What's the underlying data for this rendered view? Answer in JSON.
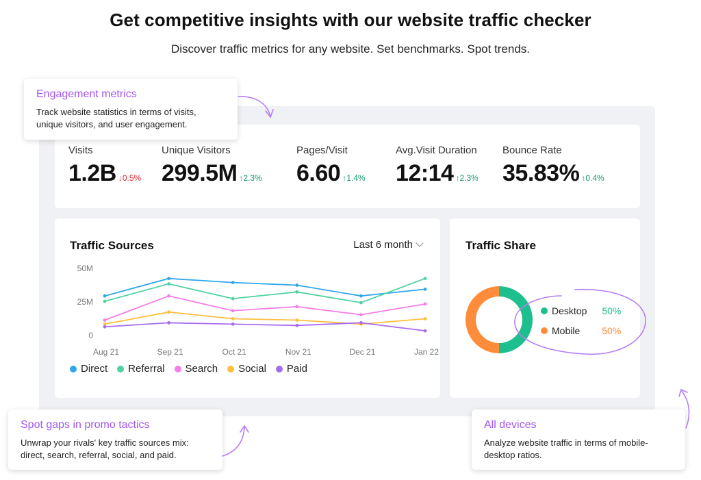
{
  "header": {
    "title": "Get competitive insights with our website traffic checker",
    "subtitle": "Discover traffic metrics for any website. Set benchmarks. Spot trends."
  },
  "metrics": [
    {
      "label": "Visits",
      "value": "1.2B",
      "change": "↓0.5%",
      "direction": "down"
    },
    {
      "label": "Unique Visitors",
      "value": "299.5M",
      "change": "↑2.3%",
      "direction": "up"
    },
    {
      "label": "Pages/Visit",
      "value": "6.60",
      "change": "↑1.4%",
      "direction": "up"
    },
    {
      "label": "Avg.Visit Duration",
      "value": "12:14",
      "change": "↑2.3%",
      "direction": "up"
    },
    {
      "label": "Bounce Rate",
      "value": "35.83%",
      "change": "↑0.4%",
      "direction": "up"
    }
  ],
  "traffic_sources": {
    "title": "Traffic Sources",
    "period": "Last 6 month"
  },
  "traffic_share": {
    "title": "Traffic Share",
    "items": [
      {
        "label": "Desktop",
        "value": "50%",
        "color": "#1dbf8f"
      },
      {
        "label": "Mobile",
        "value": "50%",
        "color": "#ff8c3b"
      }
    ]
  },
  "callouts": {
    "engagement": {
      "title": "Engagement metrics",
      "text": "Track website statistics in terms of visits, unique visitors, and user engagement."
    },
    "promo": {
      "title": "Spot gaps in promo tactics",
      "text": "Unwrap your rivals' key traffic sources mix: direct, search, referral, social, and paid."
    },
    "devices": {
      "title": "All devices",
      "text": "Analyze website traffic in terms of mobile-desktop ratios."
    }
  },
  "colors": {
    "accent": "#a156f0",
    "up": "#1a9a6c",
    "down": "#e0313a"
  },
  "chart_data": {
    "type": "line",
    "categories": [
      "Aug 21",
      "Sep 21",
      "Oct 21",
      "Nov 21",
      "Dec 21",
      "Jan 22"
    ],
    "y_ticks": [
      "50M",
      "25M",
      "0"
    ],
    "ylim": [
      0,
      50
    ],
    "grid": false,
    "legend_position": "bottom",
    "series": [
      {
        "name": "Direct",
        "color": "#2ea7ee",
        "values": [
          30,
          43,
          40,
          38,
          30,
          35
        ]
      },
      {
        "name": "Referral",
        "color": "#4fd3a0",
        "values": [
          26,
          39,
          28,
          33,
          25,
          43
        ]
      },
      {
        "name": "Search",
        "color": "#f77de8",
        "values": [
          12,
          30,
          19,
          22,
          16,
          24
        ]
      },
      {
        "name": "Social",
        "color": "#ffbf3c",
        "values": [
          9,
          18,
          13,
          12,
          9,
          13
        ]
      },
      {
        "name": "Paid",
        "color": "#a56cf0",
        "values": [
          7,
          10,
          9,
          8,
          10,
          4
        ]
      }
    ]
  }
}
